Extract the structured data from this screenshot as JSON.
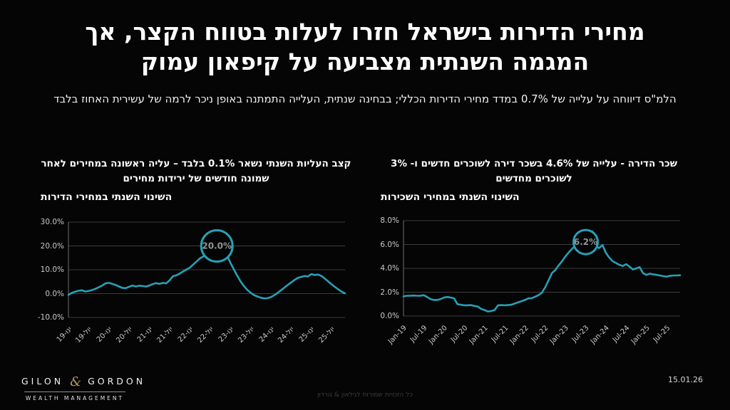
{
  "title": "מחירי הדירות בישראל חזרו לעלות בטווח הקצר, אך המגמה השנתית מצביעה על קיפאון עמוק",
  "subtitle": "הלמ\"ס דיווחה על עלייה של 0.7% במדד מחירי הדירות הכללי; בבחינה שנתית, העלייה התמתנה באופן ניכר לרמה של עשירית האחוז בלבד",
  "date": "15.01.26",
  "footer_note": "כל הזכויות שמורות לגילאון & גורדון",
  "logo": {
    "left": "GILON",
    "amp": "&",
    "right": "GORDON",
    "tagline": "WEALTH MANAGEMENT"
  },
  "colors": {
    "background": "#050505",
    "line": "#27a0b6",
    "grid": "#3c3c3c",
    "axis": "#6e6e6e",
    "gold": "#b99a5e",
    "annotation_text": "#8e9697"
  },
  "chart_data": [
    {
      "type": "line",
      "header": "קצב העליות השנתי נשאר 0.1% בלבד – עליה ראשונה במחירים לאחר שמונה חודשים של ירידות מחירים",
      "title": "השינוי השנתי במחירי הדירות",
      "line_name": "home-price-yoy-line",
      "ylim": [
        -10,
        30
      ],
      "y_ticks": [
        30,
        20,
        10,
        0,
        -10
      ],
      "y_tick_labels": [
        "30.0%",
        "20.0%",
        "10.0%",
        "0.0%",
        "-10.0%"
      ],
      "x_tick_labels": [
        "ינו-19",
        "יול-19",
        "ינו-20",
        "יול-20",
        "ינו-21",
        "יול-21",
        "ינו-22",
        "יול-22",
        "ינו-23",
        "יול-23",
        "ינו-24",
        "יול-24",
        "ינו-25",
        "יול-25"
      ],
      "x_tick_every": 6,
      "x_labels_dir": "rtl",
      "grid": true,
      "legend": "none",
      "values": [
        -0.5,
        0.3,
        0.8,
        1.2,
        1.4,
        0.9,
        1.1,
        1.5,
        2.0,
        2.7,
        3.4,
        4.3,
        4.5,
        4.1,
        3.6,
        3.0,
        2.4,
        2.3,
        2.9,
        3.4,
        3.0,
        3.3,
        3.2,
        3.0,
        3.4,
        4.0,
        4.4,
        4.1,
        4.5,
        4.3,
        5.6,
        7.3,
        7.7,
        8.4,
        9.3,
        10.1,
        10.9,
        12.2,
        13.5,
        14.8,
        15.6,
        16.1,
        15.5,
        17.8,
        20.0,
        19.2,
        17.9,
        16.0,
        13.0,
        10.2,
        7.6,
        5.2,
        3.2,
        1.6,
        0.4,
        -0.6,
        -1.2,
        -1.7,
        -2.0,
        -1.9,
        -1.5,
        -0.7,
        0.3,
        1.4,
        2.5,
        3.6,
        4.7,
        5.7,
        6.6,
        7.0,
        7.4,
        7.2,
        8.2,
        7.8,
        8.0,
        7.4,
        6.3,
        5.1,
        3.9,
        2.8,
        1.8,
        0.8,
        0.1
      ],
      "annotation": {
        "label": "20.0%",
        "index": 44,
        "value": 20.0,
        "r": 22
      }
    },
    {
      "type": "line",
      "header": "שכר הדירה - עלייה של 4.6% בשכר דירה לשוכרים חדשים ו- 3% לשוכרים מחדשים",
      "title": "השינוי השנתי במחירי השכירות",
      "line_name": "rent-yoy-line",
      "ylim": [
        0,
        8
      ],
      "y_ticks": [
        8,
        6,
        4,
        2,
        0
      ],
      "y_tick_labels": [
        "8.0%",
        "6.0%",
        "4.0%",
        "2.0%",
        "0.0%"
      ],
      "x_tick_labels": [
        "Jan-19",
        "Jul-19",
        "Jan-20",
        "Jul-20",
        "Jan-21",
        "Jul-21",
        "Jan-22",
        "Jul-22",
        "Jan-23",
        "Jul-23",
        "Jan-24",
        "Jul-24",
        "Jan-25",
        "Jul-25"
      ],
      "x_tick_every": 6,
      "x_labels_dir": "ltr",
      "grid": true,
      "legend": "none",
      "values": [
        1.65,
        1.7,
        1.7,
        1.72,
        1.7,
        1.7,
        1.75,
        1.6,
        1.42,
        1.35,
        1.35,
        1.42,
        1.55,
        1.6,
        1.55,
        1.48,
        1.0,
        0.95,
        0.9,
        0.9,
        0.92,
        0.85,
        0.8,
        0.6,
        0.5,
        0.38,
        0.42,
        0.5,
        0.9,
        0.92,
        0.9,
        0.92,
        0.95,
        1.05,
        1.15,
        1.25,
        1.35,
        1.48,
        1.5,
        1.62,
        1.75,
        1.95,
        2.4,
        3.0,
        3.6,
        3.85,
        4.25,
        4.6,
        5.0,
        5.35,
        5.65,
        5.9,
        6.1,
        6.2,
        6.2,
        6.5,
        7.1,
        5.9,
        5.7,
        5.95,
        5.3,
        4.9,
        4.6,
        4.45,
        4.3,
        4.2,
        4.35,
        4.15,
        3.9,
        4.0,
        4.1,
        3.6,
        3.45,
        3.55,
        3.5,
        3.45,
        3.4,
        3.35,
        3.3,
        3.38,
        3.4,
        3.4,
        3.42
      ],
      "annotation": {
        "label": "6.2%",
        "index": 54,
        "value": 6.2,
        "r": 17
      }
    }
  ]
}
